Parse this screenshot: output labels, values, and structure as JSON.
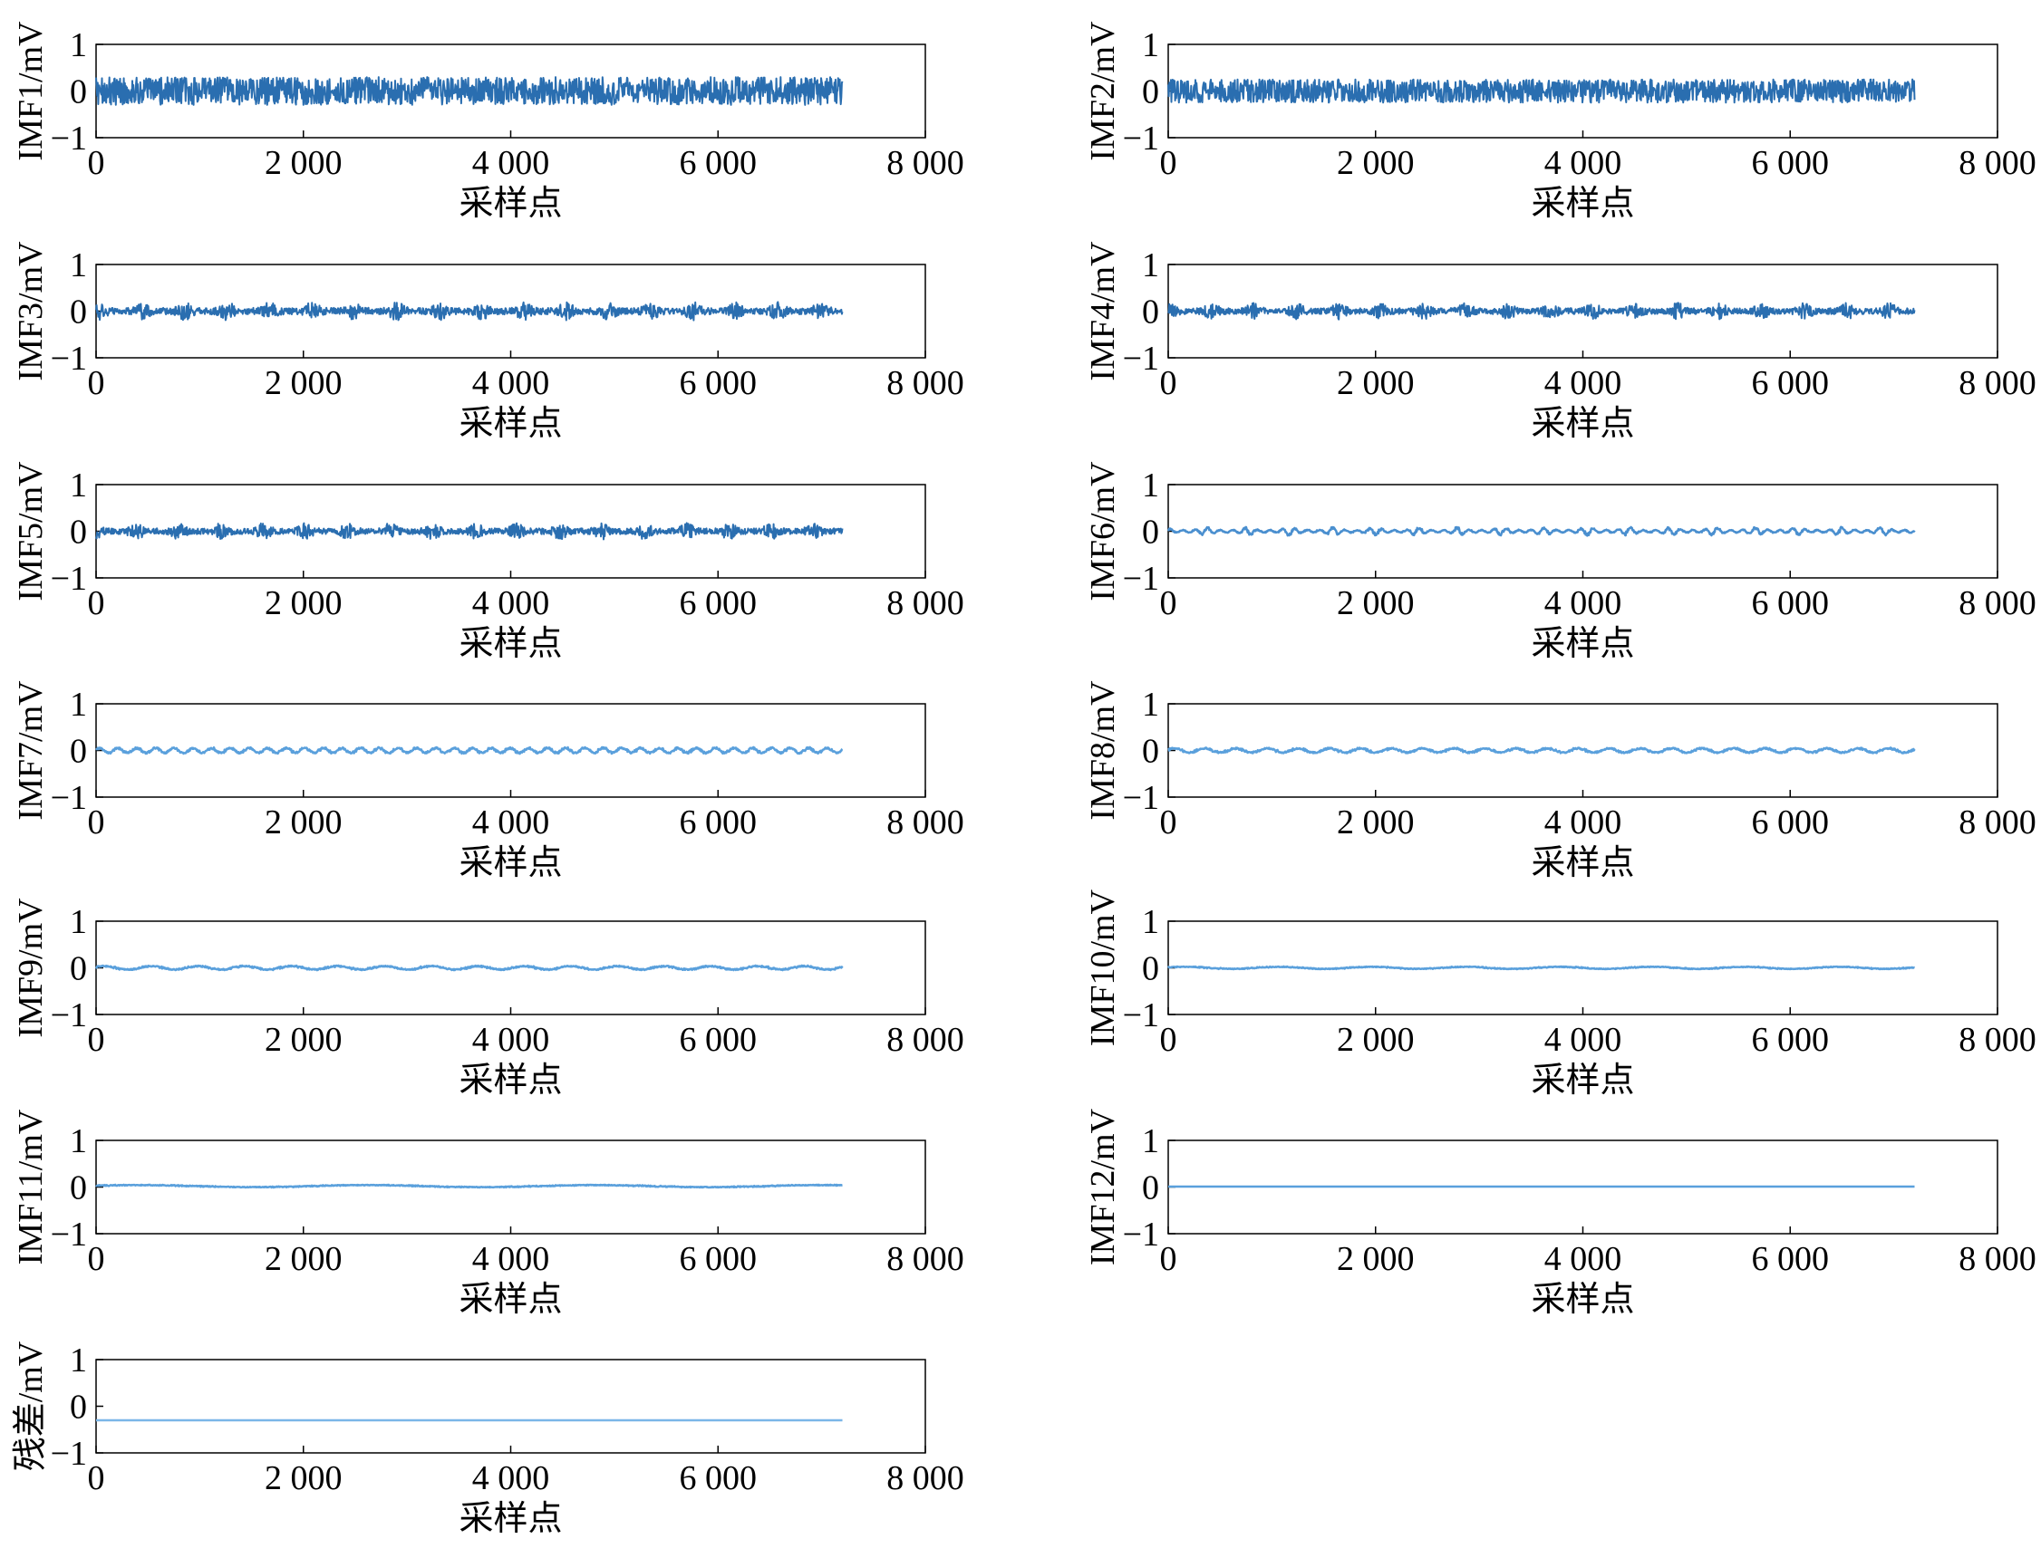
{
  "chart_data": [
    {
      "type": "line",
      "ylabel": "IMF1/mV",
      "xlabel": "采样点",
      "xlim": [
        0,
        8000
      ],
      "ylim": [
        -1,
        1
      ],
      "xticks": [
        0,
        2000,
        4000,
        6000,
        8000
      ],
      "xtick_labels": [
        "0",
        "2 000",
        "4 000",
        "6 000",
        "8 000"
      ],
      "yticks": [
        -1,
        0,
        1
      ],
      "ytick_labels": [
        "−1",
        "0",
        "1"
      ],
      "signal": {
        "x_end": 7200,
        "amplitude": 0.3,
        "period": 40,
        "offset": 0,
        "bursts": false
      },
      "color": "#2a6eb0"
    },
    {
      "type": "line",
      "ylabel": "IMF2/mV",
      "xlabel": "采样点",
      "xlim": [
        0,
        8000
      ],
      "ylim": [
        -1,
        1
      ],
      "xticks": [
        0,
        2000,
        4000,
        6000,
        8000
      ],
      "xtick_labels": [
        "0",
        "2 000",
        "4 000",
        "6 000",
        "8 000"
      ],
      "yticks": [
        -1,
        0,
        1
      ],
      "ytick_labels": [
        "−1",
        "0",
        "1"
      ],
      "signal": {
        "x_end": 7200,
        "amplitude": 0.25,
        "period": 50,
        "offset": 0,
        "bursts": false
      },
      "color": "#2a6eb0"
    },
    {
      "type": "line",
      "ylabel": "IMF3/mV",
      "xlabel": "采样点",
      "xlim": [
        0,
        8000
      ],
      "ylim": [
        -1,
        1
      ],
      "xticks": [
        0,
        2000,
        4000,
        6000,
        8000
      ],
      "xtick_labels": [
        "0",
        "2 000",
        "4 000",
        "6 000",
        "8 000"
      ],
      "yticks": [
        -1,
        0,
        1
      ],
      "ytick_labels": [
        "−1",
        "0",
        "1"
      ],
      "signal": {
        "x_end": 7200,
        "amplitude": 0.2,
        "period": 60,
        "offset": 0,
        "bursts": true
      },
      "color": "#2a6eb0"
    },
    {
      "type": "line",
      "ylabel": "IMF4/mV",
      "xlabel": "采样点",
      "xlim": [
        0,
        8000
      ],
      "ylim": [
        -1,
        1
      ],
      "xticks": [
        0,
        2000,
        4000,
        6000,
        8000
      ],
      "xtick_labels": [
        "0",
        "2 000",
        "4 000",
        "6 000",
        "8 000"
      ],
      "yticks": [
        -1,
        0,
        1
      ],
      "ytick_labels": [
        "−1",
        "0",
        "1"
      ],
      "signal": {
        "x_end": 7200,
        "amplitude": 0.18,
        "period": 70,
        "offset": 0,
        "bursts": true
      },
      "color": "#2a6eb0"
    },
    {
      "type": "line",
      "ylabel": "IMF5/mV",
      "xlabel": "采样点",
      "xlim": [
        0,
        8000
      ],
      "ylim": [
        -1,
        1
      ],
      "xticks": [
        0,
        2000,
        4000,
        6000,
        8000
      ],
      "xtick_labels": [
        "0",
        "2 000",
        "4 000",
        "6 000",
        "8 000"
      ],
      "yticks": [
        -1,
        0,
        1
      ],
      "ytick_labels": [
        "−1",
        "0",
        "1"
      ],
      "signal": {
        "x_end": 7200,
        "amplitude": 0.18,
        "period": 80,
        "offset": 0,
        "bursts": true
      },
      "color": "#2a6eb0"
    },
    {
      "type": "line",
      "ylabel": "IMF6/mV",
      "xlabel": "采样点",
      "xlim": [
        0,
        8000
      ],
      "ylim": [
        -1,
        1
      ],
      "xticks": [
        0,
        2000,
        4000,
        6000,
        8000
      ],
      "xtick_labels": [
        "0",
        "2 000",
        "4 000",
        "6 000",
        "8 000"
      ],
      "yticks": [
        -1,
        0,
        1
      ],
      "ytick_labels": [
        "−1",
        "0",
        "1"
      ],
      "signal": {
        "x_end": 7200,
        "amplitude": 0.1,
        "period": 120,
        "offset": 0,
        "bursts": true
      },
      "color": "#4a8fcf"
    },
    {
      "type": "line",
      "ylabel": "IMF7/mV",
      "xlabel": "采样点",
      "xlim": [
        0,
        8000
      ],
      "ylim": [
        -1,
        1
      ],
      "xticks": [
        0,
        2000,
        4000,
        6000,
        8000
      ],
      "xtick_labels": [
        "0",
        "2 000",
        "4 000",
        "6 000",
        "8 000"
      ],
      "yticks": [
        -1,
        0,
        1
      ],
      "ytick_labels": [
        "−1",
        "0",
        "1"
      ],
      "signal": {
        "x_end": 7200,
        "amplitude": 0.07,
        "period": 180,
        "offset": 0,
        "bursts": false
      },
      "color": "#5aa0dc"
    },
    {
      "type": "line",
      "ylabel": "IMF8/mV",
      "xlabel": "采样点",
      "xlim": [
        0,
        8000
      ],
      "ylim": [
        -1,
        1
      ],
      "xticks": [
        0,
        2000,
        4000,
        6000,
        8000
      ],
      "xtick_labels": [
        "0",
        "2 000",
        "4 000",
        "6 000",
        "8 000"
      ],
      "yticks": [
        -1,
        0,
        1
      ],
      "ytick_labels": [
        "−1",
        "0",
        "1"
      ],
      "signal": {
        "x_end": 7200,
        "amplitude": 0.06,
        "period": 300,
        "offset": 0,
        "bursts": false
      },
      "color": "#5aa0dc"
    },
    {
      "type": "line",
      "ylabel": "IMF9/mV",
      "xlabel": "采样点",
      "xlim": [
        0,
        8000
      ],
      "ylim": [
        -1,
        1
      ],
      "xticks": [
        0,
        2000,
        4000,
        6000,
        8000
      ],
      "xtick_labels": [
        "0",
        "2 000",
        "4 000",
        "6 000",
        "8 000"
      ],
      "yticks": [
        -1,
        0,
        1
      ],
      "ytick_labels": [
        "−1",
        "0",
        "1"
      ],
      "signal": {
        "x_end": 7200,
        "amplitude": 0.05,
        "period": 450,
        "offset": 0,
        "bursts": false
      },
      "color": "#5aa0dc"
    },
    {
      "type": "line",
      "ylabel": "IMF10/mV",
      "xlabel": "采样点",
      "xlim": [
        0,
        8000
      ],
      "ylim": [
        -1,
        1
      ],
      "xticks": [
        0,
        2000,
        4000,
        6000,
        8000
      ],
      "xtick_labels": [
        "0",
        "2 000",
        "4 000",
        "6 000",
        "8 000"
      ],
      "yticks": [
        -1,
        0,
        1
      ],
      "ytick_labels": [
        "−1",
        "0",
        "1"
      ],
      "signal": {
        "x_end": 7200,
        "amplitude": 0.03,
        "period": 900,
        "offset": 0,
        "bursts": false
      },
      "color": "#5aa0dc"
    },
    {
      "type": "line",
      "ylabel": "IMF11/mV",
      "xlabel": "采样点",
      "xlim": [
        0,
        8000
      ],
      "ylim": [
        -1,
        1
      ],
      "xticks": [
        0,
        2000,
        4000,
        6000,
        8000
      ],
      "xtick_labels": [
        "0",
        "2 000",
        "4 000",
        "6 000",
        "8 000"
      ],
      "yticks": [
        -1,
        0,
        1
      ],
      "ytick_labels": [
        "−1",
        "0",
        "1"
      ],
      "signal": {
        "x_end": 7200,
        "amplitude": 0.03,
        "period": 2200,
        "offset": 0.02,
        "bursts": false
      },
      "color": "#5aa0dc"
    },
    {
      "type": "line",
      "ylabel": "IMF12/mV",
      "xlabel": "采样点",
      "xlim": [
        0,
        8000
      ],
      "ylim": [
        -1,
        1
      ],
      "xticks": [
        0,
        2000,
        4000,
        6000,
        8000
      ],
      "xtick_labels": [
        "0",
        "2 000",
        "4 000",
        "6 000",
        "8 000"
      ],
      "yticks": [
        -1,
        0,
        1
      ],
      "ytick_labels": [
        "−1",
        "0",
        "1"
      ],
      "signal": {
        "x_end": 7200,
        "amplitude": 0.0,
        "period": 5000,
        "offset": 0.01,
        "bursts": false
      },
      "color": "#5aa0dc"
    },
    {
      "type": "line",
      "ylabel": "残差/mV",
      "xlabel": "采样点",
      "xlim": [
        0,
        8000
      ],
      "ylim": [
        -1,
        1
      ],
      "xticks": [
        0,
        2000,
        4000,
        6000,
        8000
      ],
      "xtick_labels": [
        "0",
        "2 000",
        "4 000",
        "6 000",
        "8 000"
      ],
      "yticks": [
        -1,
        0,
        1
      ],
      "ytick_labels": [
        "−1",
        "0",
        "1"
      ],
      "signal": {
        "x_end": 7200,
        "amplitude": 0.0,
        "period": 5000,
        "offset": -0.3,
        "bursts": false
      },
      "color": "#7ab6e8"
    }
  ]
}
